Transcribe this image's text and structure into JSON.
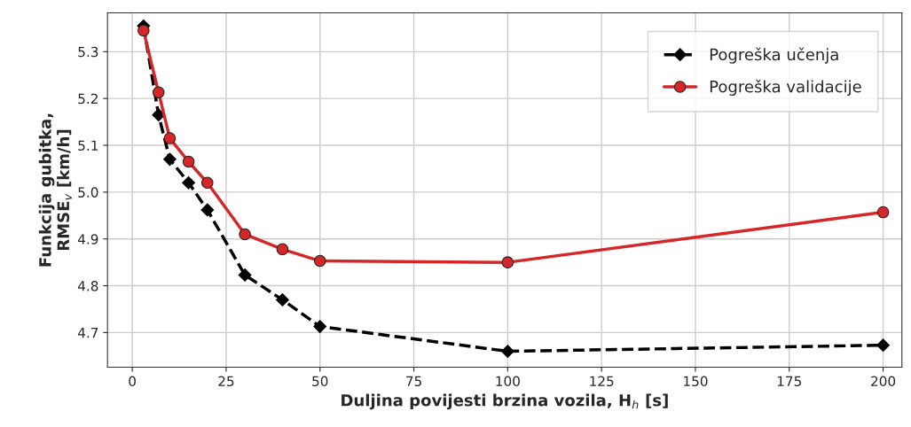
{
  "chart_data": {
    "type": "line",
    "xlabel": "Duljina povijesti brzina vozila, H$_{h}$ [s]",
    "ylabel": "Funkcija gubitka,\nRMSE$_{v}$ [km/h]",
    "x": [
      3,
      7,
      10,
      15,
      20,
      30,
      40,
      50,
      100,
      200
    ],
    "series": [
      {
        "name": "Pogreška učenja",
        "color": "#000000",
        "marker": "diamond",
        "line_style": "dashed",
        "values": [
          5.355,
          5.165,
          5.07,
          5.02,
          4.962,
          4.823,
          4.77,
          4.713,
          4.66,
          4.673
        ]
      },
      {
        "name": "Pogreška validacije",
        "color": "#d62728",
        "marker": "circle",
        "line_style": "solid",
        "values": [
          5.345,
          5.213,
          5.115,
          5.065,
          5.02,
          4.91,
          4.878,
          4.853,
          4.85,
          4.957
        ]
      }
    ],
    "xlim": [
      -6.6,
      205
    ],
    "xticks": [
      0,
      25,
      50,
      75,
      100,
      125,
      150,
      175,
      200
    ],
    "ylim": [
      4.626,
      5.383
    ],
    "yticks": [
      4.7,
      4.8,
      4.9,
      {
        "value": 5.0,
        "label": "5.0"
      },
      5.1,
      5.2,
      5.3
    ],
    "grid": true,
    "legend": "top right"
  }
}
